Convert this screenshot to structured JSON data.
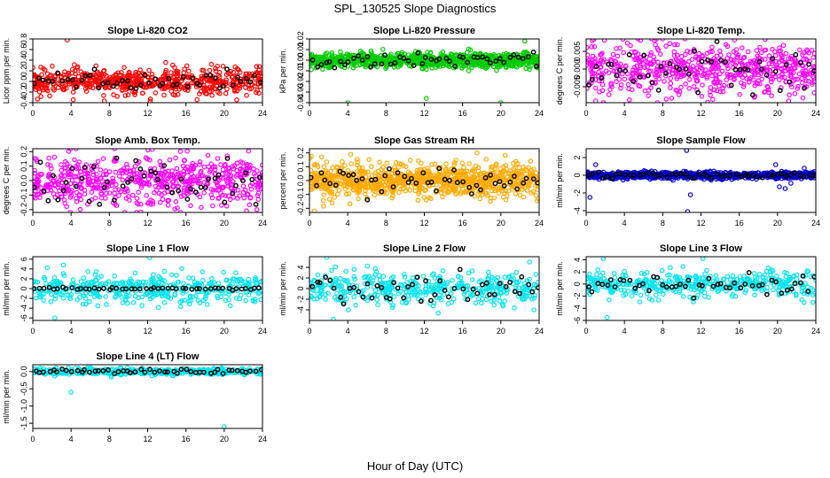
{
  "figure": {
    "title": "SPL_130525  Slope Diagnostics",
    "xlabel": "Hour of Day (UTC)"
  },
  "chart_data": [
    {
      "type": "scatter",
      "title": "Slope Li-820 CO2",
      "ylabel": "Licor ppm per min.",
      "xlim": [
        0,
        24
      ],
      "ylim": [
        -0.4,
        0.8
      ],
      "yticks": [
        "-0.4",
        "-0.2",
        "0.0",
        "0.2",
        "0.4",
        "0.6",
        "0.8"
      ],
      "color": "#ff0000",
      "center": 0.0,
      "spread": 0.12,
      "points": 600,
      "outliers": [
        [
          3.6,
          0.78
        ],
        [
          12.3,
          -0.33
        ]
      ],
      "black_points": 50
    },
    {
      "type": "scatter",
      "title": "Slope Li-820 Pressure",
      "ylabel": "kPa per min.",
      "xlim": [
        0,
        24
      ],
      "ylim": [
        -0.04,
        0.02
      ],
      "yticks": [
        "-0.04",
        "-0.03",
        "-0.02",
        "-0.01",
        "0.00",
        "0.01",
        "0.02"
      ],
      "color": "#00cc00",
      "center": 0.0,
      "spread": 0.0035,
      "points": 900,
      "outliers": [
        [
          4.0,
          -0.04
        ],
        [
          12.2,
          -0.036
        ],
        [
          20.0,
          -0.04
        ],
        [
          22.5,
          0.018
        ]
      ],
      "black_points": 50
    },
    {
      "type": "scatter",
      "title": "Slope Li-820 Temp.",
      "ylabel": "degrees C per min.",
      "xlim": [
        0,
        24
      ],
      "ylim": [
        -0.0095,
        0.0085
      ],
      "yticks": [
        "-0.005",
        "0.000",
        "0.005"
      ],
      "color": "#ff00ff",
      "center": 0.0,
      "spread": 0.0035,
      "points": 600,
      "outliers": [
        [
          15.5,
          0.0082
        ],
        [
          1.0,
          -0.009
        ]
      ],
      "black_points": 50
    },
    {
      "type": "scatter",
      "title": "Slope Amb. Box Temp.",
      "ylabel": "degrees C per min.",
      "xlim": [
        0,
        24
      ],
      "ylim": [
        -0.22,
        0.22
      ],
      "yticks": [
        "-0.2",
        "-0.1",
        "0.0",
        "0.1",
        "0.2"
      ],
      "color": "#ff00ff",
      "center": 0.0,
      "spread": 0.085,
      "points": 600,
      "outliers": [],
      "black_points": 50
    },
    {
      "type": "scatter",
      "title": "Slope Gas Stream RH",
      "ylabel": "percent per min.",
      "xlim": [
        0,
        24
      ],
      "ylim": [
        -0.23,
        0.23
      ],
      "yticks": [
        "-0.2",
        "-0.1",
        "0.0",
        "0.1",
        "0.2"
      ],
      "color": "#ffaa00",
      "center": 0.0,
      "spread": 0.06,
      "points": 900,
      "outliers": [
        [
          0.5,
          -0.22
        ],
        [
          17.5,
          0.2
        ]
      ],
      "black_points": 50
    },
    {
      "type": "scatter",
      "title": "Slope Sample Flow",
      "ylabel": "ml/min per min.",
      "xlim": [
        0,
        24
      ],
      "ylim": [
        -4.2,
        3
      ],
      "yticks": [
        "-4",
        "-2",
        "0",
        "2"
      ],
      "color": "#0000cc",
      "center": 0.0,
      "spread": 0.18,
      "points": 900,
      "outliers": [
        [
          10.5,
          2.8
        ],
        [
          10.6,
          -4.1
        ],
        [
          10.9,
          -2.2
        ],
        [
          0.4,
          -2.5
        ],
        [
          1.0,
          1.2
        ],
        [
          19.8,
          1.2
        ],
        [
          20.2,
          -1.3
        ],
        [
          20.8,
          -1.5
        ],
        [
          22.8,
          0.8
        ],
        [
          21.4,
          -0.9
        ]
      ],
      "black_points": 50
    },
    {
      "type": "scatter",
      "title": "Slope Line 1 Flow",
      "ylabel": "ml/min per min.",
      "xlim": [
        0,
        24
      ],
      "ylim": [
        -6.5,
        6.5
      ],
      "yticks": [
        "-6",
        "-4",
        "-2",
        "0",
        "2",
        "4",
        "6"
      ],
      "color": "#00e5ee",
      "center": 0.0,
      "spread": 1.4,
      "points": 420,
      "outliers": [
        [
          2.3,
          -6.0
        ],
        [
          12.2,
          6.3
        ],
        [
          3.2,
          4.8
        ]
      ],
      "black_points": 50,
      "black_spread": 0.12
    },
    {
      "type": "scatter",
      "title": "Slope Line 2 Flow",
      "ylabel": "ml/min per min.",
      "xlim": [
        0,
        24
      ],
      "ylim": [
        -6,
        6
      ],
      "yticks": [
        "-4",
        "-2",
        "0",
        "2",
        "4"
      ],
      "color": "#00e5ee",
      "center": 0.0,
      "spread": 1.6,
      "points": 420,
      "outliers": [
        [
          1.8,
          5.9
        ],
        [
          2.5,
          -5.8
        ],
        [
          23.0,
          5.0
        ]
      ],
      "black_points": 50
    },
    {
      "type": "scatter",
      "title": "Slope Line 3 Flow",
      "ylabel": "ml/min per min.",
      "xlim": [
        0,
        24
      ],
      "ylim": [
        -6,
        4.5
      ],
      "yticks": [
        "-6",
        "-4",
        "-2",
        "0",
        "2",
        "4"
      ],
      "color": "#00e5ee",
      "center": 0.0,
      "spread": 1.1,
      "points": 420,
      "outliers": [
        [
          1.8,
          4.2
        ],
        [
          2.2,
          -5.5
        ],
        [
          12.2,
          4.2
        ]
      ],
      "black_points": 50
    },
    {
      "type": "scatter",
      "title": "Slope Line 4 (LT) Flow",
      "ylabel": "ml/min per min.",
      "xlim": [
        0,
        24
      ],
      "ylim": [
        -1.65,
        0.2
      ],
      "yticks": [
        "-1.5",
        "-1.0",
        "-0.5",
        "0.0"
      ],
      "color": "#00e5ee",
      "center": 0.0,
      "spread": 0.05,
      "points": 420,
      "outliers": [
        [
          4.0,
          -0.6
        ],
        [
          20.0,
          -1.6
        ]
      ],
      "black_points": 50
    },
    {
      "xticks": [
        "0",
        "4",
        "8",
        "12",
        "16",
        "20",
        "24"
      ]
    }
  ]
}
